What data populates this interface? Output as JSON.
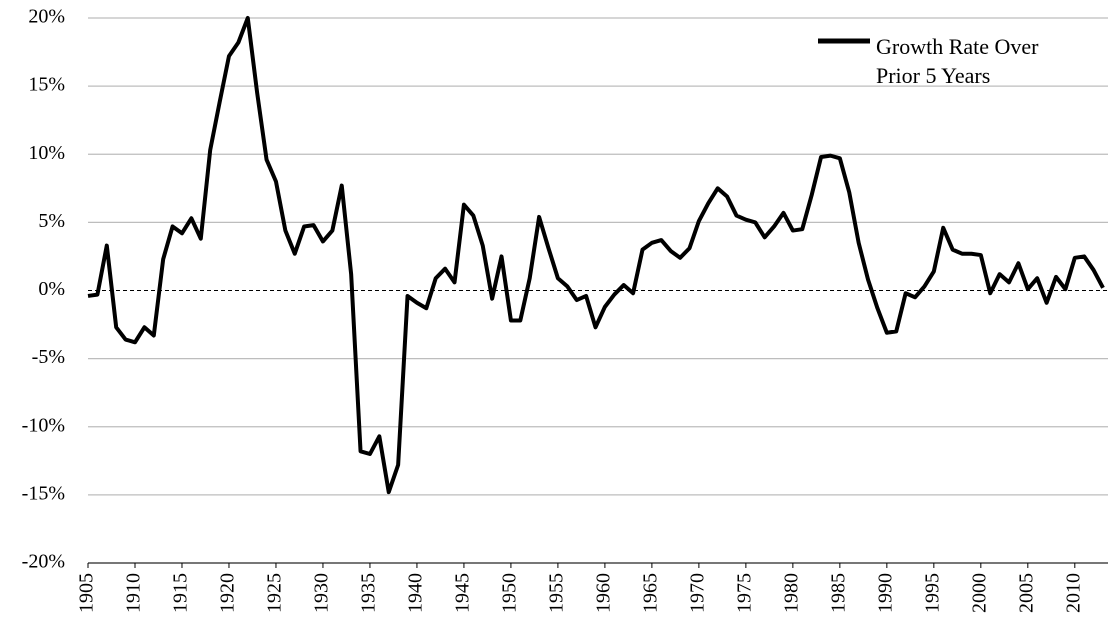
{
  "chart_data": {
    "type": "line",
    "x": [
      1905,
      1906,
      1907,
      1908,
      1909,
      1910,
      1911,
      1912,
      1913,
      1914,
      1915,
      1916,
      1917,
      1918,
      1919,
      1920,
      1921,
      1922,
      1923,
      1924,
      1925,
      1926,
      1927,
      1928,
      1929,
      1930,
      1931,
      1932,
      1933,
      1934,
      1935,
      1936,
      1937,
      1938,
      1939,
      1940,
      1941,
      1942,
      1943,
      1944,
      1945,
      1946,
      1947,
      1948,
      1949,
      1950,
      1951,
      1952,
      1953,
      1954,
      1955,
      1956,
      1957,
      1958,
      1959,
      1960,
      1961,
      1962,
      1963,
      1964,
      1965,
      1966,
      1967,
      1968,
      1969,
      1970,
      1971,
      1972,
      1973,
      1974,
      1975,
      1976,
      1977,
      1978,
      1979,
      1980,
      1981,
      1982,
      1983,
      1984,
      1985,
      1986,
      1987,
      1988,
      1989,
      1990,
      1991,
      1992,
      1993,
      1994,
      1995,
      1996,
      1997,
      1998,
      1999,
      2000,
      2001,
      2002,
      2003,
      2004,
      2005,
      2006,
      2007,
      2008,
      2009,
      2010,
      2011,
      2012,
      2013
    ],
    "series": [
      {
        "name": "Growth Rate Over Prior 5 Years",
        "color": "#000000",
        "values": [
          -0.4,
          -0.3,
          3.3,
          -2.7,
          -3.6,
          -3.8,
          -2.7,
          -3.3,
          2.3,
          4.7,
          4.2,
          5.3,
          3.8,
          10.3,
          13.8,
          17.2,
          18.2,
          20.0,
          14.5,
          9.6,
          8.0,
          4.4,
          2.7,
          4.7,
          4.8,
          3.6,
          4.4,
          7.7,
          1.2,
          -11.8,
          -12.0,
          -10.7,
          -14.8,
          -12.8,
          -0.4,
          -0.9,
          -1.3,
          0.9,
          1.6,
          0.6,
          6.3,
          5.5,
          3.3,
          -0.6,
          2.5,
          -2.2,
          -2.2,
          0.9,
          5.4,
          3.1,
          0.9,
          0.3,
          -0.7,
          -0.4,
          -2.7,
          -1.2,
          -0.3,
          0.4,
          -0.2,
          3.0,
          3.5,
          3.7,
          2.9,
          2.4,
          3.1,
          5.1,
          6.4,
          7.5,
          6.9,
          5.5,
          5.2,
          5.0,
          3.9,
          4.7,
          5.7,
          4.4,
          4.5,
          7.0,
          9.8,
          9.9,
          9.7,
          7.2,
          3.5,
          0.8,
          -1.3,
          -3.1,
          -3.0,
          -0.2,
          -0.5,
          0.3,
          1.4,
          4.6,
          3.0,
          2.7,
          2.7,
          2.6,
          -0.2,
          1.2,
          0.6,
          2.0,
          0.1,
          0.9,
          -0.9,
          1.0,
          0.1,
          2.4,
          2.5,
          1.5,
          0.2
        ]
      }
    ],
    "xlim": [
      1905,
      2013
    ],
    "xticks": [
      1905,
      1910,
      1915,
      1920,
      1925,
      1930,
      1935,
      1940,
      1945,
      1950,
      1955,
      1960,
      1965,
      1970,
      1975,
      1980,
      1985,
      1990,
      1995,
      2000,
      2005,
      2010
    ],
    "ylim": [
      -20,
      20
    ],
    "yticks": [
      {
        "value": -20,
        "label": "-20%"
      },
      {
        "value": -15,
        "label": "-15%"
      },
      {
        "value": -10,
        "label": "-10%"
      },
      {
        "value": -5,
        "label": "-5%"
      },
      {
        "value": 0,
        "label": "0%"
      },
      {
        "value": 5,
        "label": "5%"
      },
      {
        "value": 10,
        "label": "10%"
      },
      {
        "value": 15,
        "label": "15%"
      },
      {
        "value": 20,
        "label": "20%"
      }
    ],
    "grid": true,
    "legend": "upper right"
  }
}
